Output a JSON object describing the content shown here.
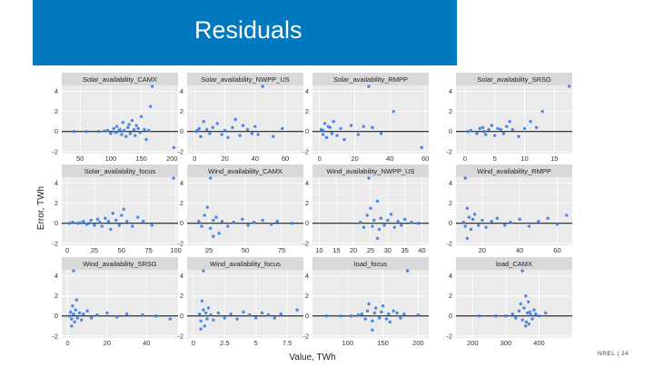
{
  "header": {
    "title": "Residuals"
  },
  "footer": {
    "org": "NREL",
    "separator": "|",
    "page": "24"
  },
  "colors": {
    "panel_bg": "#EBEBEB",
    "strip_bg": "#D9D9D9",
    "grid": "#FFFFFF",
    "point": "#3A7DE0",
    "zero_line": "#000000"
  },
  "chart_data": {
    "type": "scatter",
    "xlabel": "Value, TWh",
    "ylabel": "Error, TWh",
    "ylim": [
      -2.2,
      4.6
    ],
    "yticks": [
      -2,
      0,
      2,
      4
    ],
    "facets": [
      {
        "label": "Solar_availability_CAMX",
        "xlim": [
          20,
          210
        ],
        "xticks": [
          50,
          100,
          150,
          200
        ],
        "points": [
          [
            40,
            0
          ],
          [
            60,
            0
          ],
          [
            80,
            0
          ],
          [
            95,
            0.1
          ],
          [
            100,
            -0.2
          ],
          [
            105,
            0.3
          ],
          [
            108,
            -0.1
          ],
          [
            110,
            0.5
          ],
          [
            115,
            0.2
          ],
          [
            118,
            -0.3
          ],
          [
            120,
            0.9
          ],
          [
            122,
            0.1
          ],
          [
            125,
            -0.5
          ],
          [
            128,
            0.4
          ],
          [
            130,
            0.7
          ],
          [
            132,
            -0.2
          ],
          [
            135,
            1.1
          ],
          [
            138,
            0.2
          ],
          [
            140,
            -0.4
          ],
          [
            142,
            0.6
          ],
          [
            145,
            0.3
          ],
          [
            148,
            -0.1
          ],
          [
            150,
            1.5
          ],
          [
            155,
            0.2
          ],
          [
            158,
            -0.8
          ],
          [
            162,
            0.1
          ],
          [
            165,
            2.5
          ],
          [
            168,
            4.5
          ],
          [
            203,
            -1.6
          ],
          [
            112,
            0
          ],
          [
            90,
            0.05
          ]
        ]
      },
      {
        "label": "Solar_availability_NWPP_US",
        "xlim": [
          -5,
          72
        ],
        "xticks": [
          0,
          20,
          40,
          60
        ],
        "points": [
          [
            1,
            0
          ],
          [
            3,
            0.3
          ],
          [
            4,
            -0.5
          ],
          [
            6,
            1.0
          ],
          [
            8,
            0.2
          ],
          [
            10,
            -0.2
          ],
          [
            12,
            0.4
          ],
          [
            15,
            0.8
          ],
          [
            18,
            -0.3
          ],
          [
            20,
            0.1
          ],
          [
            22,
            -0.6
          ],
          [
            25,
            0.4
          ],
          [
            27,
            1.2
          ],
          [
            30,
            -0.4
          ],
          [
            32,
            0.6
          ],
          [
            35,
            0.2
          ],
          [
            38,
            -0.2
          ],
          [
            40,
            0.5
          ],
          [
            42,
            -0.3
          ],
          [
            52,
            -0.5
          ],
          [
            58,
            0.3
          ],
          [
            45,
            4.5
          ],
          [
            2,
            0.1
          ]
        ]
      },
      {
        "label": "Solar_availability_RMPP",
        "xlim": [
          -4,
          62
        ],
        "xticks": [
          0,
          20,
          40,
          60
        ],
        "points": [
          [
            1,
            0.2
          ],
          [
            2,
            -0.3
          ],
          [
            3,
            0.8
          ],
          [
            4,
            -0.6
          ],
          [
            5,
            0.5
          ],
          [
            6,
            0.4
          ],
          [
            7,
            -0.2
          ],
          [
            8,
            1.0
          ],
          [
            10,
            -0.4
          ],
          [
            12,
            0.3
          ],
          [
            14,
            -0.8
          ],
          [
            18,
            0.6
          ],
          [
            22,
            -0.3
          ],
          [
            25,
            0.5
          ],
          [
            30,
            0.4
          ],
          [
            35,
            -0.2
          ],
          [
            42,
            2.0
          ],
          [
            58,
            -1.6
          ],
          [
            28,
            4.5
          ],
          [
            2,
            0.1
          ]
        ]
      },
      {
        "label": "Solar_availability_SRSG",
        "xlim": [
          -1.5,
          18
        ],
        "xticks": [
          0,
          5,
          10,
          15
        ],
        "points": [
          [
            0.5,
            0
          ],
          [
            1,
            0.1
          ],
          [
            2,
            -0.2
          ],
          [
            2.5,
            0.3
          ],
          [
            3,
            0.4
          ],
          [
            3.5,
            -0.3
          ],
          [
            4,
            0.2
          ],
          [
            4.5,
            0.6
          ],
          [
            5,
            -0.4
          ],
          [
            5.5,
            0.3
          ],
          [
            6,
            0.2
          ],
          [
            6.5,
            -0.2
          ],
          [
            7,
            0.5
          ],
          [
            7.5,
            1.0
          ],
          [
            8,
            0.2
          ],
          [
            9,
            -0.5
          ],
          [
            10,
            0.3
          ],
          [
            11,
            1.0
          ],
          [
            12,
            0.4
          ],
          [
            13,
            2.0
          ],
          [
            17.5,
            4.5
          ],
          [
            3.2,
            0
          ]
        ]
      },
      {
        "label": "Solar_availability_focus",
        "xlim": [
          -5,
          102
        ],
        "xticks": [
          0,
          25,
          50,
          75,
          100
        ],
        "points": [
          [
            2,
            0
          ],
          [
            5,
            0.1
          ],
          [
            10,
            0
          ],
          [
            15,
            0.2
          ],
          [
            18,
            -0.1
          ],
          [
            22,
            0.3
          ],
          [
            25,
            -0.2
          ],
          [
            28,
            0.4
          ],
          [
            30,
            0.1
          ],
          [
            32,
            -0.3
          ],
          [
            35,
            0.5
          ],
          [
            38,
            0.2
          ],
          [
            40,
            -0.6
          ],
          [
            42,
            1.0
          ],
          [
            45,
            0.3
          ],
          [
            48,
            -0.2
          ],
          [
            50,
            0.8
          ],
          [
            52,
            1.4
          ],
          [
            55,
            0.2
          ],
          [
            60,
            -0.3
          ],
          [
            65,
            0.6
          ],
          [
            70,
            0.2
          ],
          [
            78,
            -0.2
          ],
          [
            98,
            4.5
          ],
          [
            12,
            0.05
          ],
          [
            20,
            0
          ]
        ]
      },
      {
        "label": "Wind_availability_CAMX",
        "xlim": [
          10,
          90
        ],
        "xticks": [
          25,
          50,
          75
        ],
        "points": [
          [
            18,
            0.2
          ],
          [
            20,
            -0.3
          ],
          [
            22,
            0.8
          ],
          [
            24,
            1.6
          ],
          [
            26,
            -0.5
          ],
          [
            28,
            0.3
          ],
          [
            30,
            0.6
          ],
          [
            32,
            -1.0
          ],
          [
            34,
            0.2
          ],
          [
            38,
            -0.3
          ],
          [
            42,
            0.1
          ],
          [
            48,
            0.4
          ],
          [
            52,
            -0.2
          ],
          [
            56,
            0.1
          ],
          [
            62,
            0.3
          ],
          [
            68,
            -0.1
          ],
          [
            72,
            0.2
          ],
          [
            82,
            0
          ],
          [
            26,
            4.5
          ],
          [
            28,
            -1.3
          ]
        ]
      },
      {
        "label": "Wind_availability_NWPP_US",
        "xlim": [
          8,
          42
        ],
        "xticks": [
          10,
          15,
          20,
          25,
          30,
          35,
          40
        ],
        "points": [
          [
            22,
            0.1
          ],
          [
            23,
            -0.4
          ],
          [
            24,
            0.8
          ],
          [
            25,
            1.5
          ],
          [
            25.5,
            -0.3
          ],
          [
            26,
            0.3
          ],
          [
            27,
            2.2
          ],
          [
            27.5,
            -0.6
          ],
          [
            28,
            0.5
          ],
          [
            29,
            -0.2
          ],
          [
            30,
            0.3
          ],
          [
            31,
            0.9
          ],
          [
            32,
            -0.4
          ],
          [
            33,
            0.2
          ],
          [
            34,
            -0.2
          ],
          [
            35,
            0.4
          ],
          [
            37,
            0.1
          ],
          [
            39,
            0
          ],
          [
            24.5,
            4.5
          ],
          [
            27,
            -1.5
          ]
        ]
      },
      {
        "label": "Wind_availability_RMPP",
        "xlim": [
          6,
          68
        ],
        "xticks": [
          20,
          40,
          60
        ],
        "points": [
          [
            10,
            0.1
          ],
          [
            11,
            -0.3
          ],
          [
            12,
            1.5
          ],
          [
            13,
            0.6
          ],
          [
            14,
            -0.6
          ],
          [
            15,
            0.4
          ],
          [
            16,
            0.9
          ],
          [
            18,
            -0.2
          ],
          [
            20,
            0.3
          ],
          [
            22,
            -0.4
          ],
          [
            25,
            0.2
          ],
          [
            28,
            0.5
          ],
          [
            32,
            -0.2
          ],
          [
            35,
            0.1
          ],
          [
            40,
            0.4
          ],
          [
            45,
            -0.3
          ],
          [
            50,
            0.2
          ],
          [
            55,
            0.5
          ],
          [
            60,
            -0.1
          ],
          [
            65,
            0.8
          ],
          [
            12,
            -1.5
          ],
          [
            11,
            4.5
          ]
        ]
      },
      {
        "label": "Wind_availability_SRSG",
        "xlim": [
          -3,
          56
        ],
        "xticks": [
          0,
          20,
          40
        ],
        "points": [
          [
            1,
            0
          ],
          [
            1.5,
            0.4
          ],
          [
            2,
            -0.3
          ],
          [
            2.5,
            1.0
          ],
          [
            3,
            0.2
          ],
          [
            3.5,
            -0.6
          ],
          [
            4,
            0.6
          ],
          [
            4.5,
            1.6
          ],
          [
            5,
            -0.2
          ],
          [
            6,
            0.3
          ],
          [
            7,
            -0.4
          ],
          [
            8,
            0.2
          ],
          [
            10,
            0.5
          ],
          [
            12,
            -0.2
          ],
          [
            15,
            0.1
          ],
          [
            20,
            0.3
          ],
          [
            25,
            -0.1
          ],
          [
            30,
            0.2
          ],
          [
            38,
            0.1
          ],
          [
            45,
            0
          ],
          [
            52,
            -0.3
          ],
          [
            3,
            4.5
          ],
          [
            2,
            -1.0
          ]
        ]
      },
      {
        "label": "Wind_availability_focus",
        "xlim": [
          -0.5,
          8.8
        ],
        "xticks": [
          0.0,
          2.5,
          5.0,
          7.5
        ],
        "points": [
          [
            0.5,
            0.2
          ],
          [
            0.6,
            -0.5
          ],
          [
            0.7,
            1.5
          ],
          [
            0.8,
            0.6
          ],
          [
            0.9,
            -1.0
          ],
          [
            1.0,
            0.3
          ],
          [
            1.1,
            -0.3
          ],
          [
            1.2,
            0.8
          ],
          [
            1.4,
            0.1
          ],
          [
            1.6,
            -0.4
          ],
          [
            2.0,
            0.3
          ],
          [
            2.5,
            -0.2
          ],
          [
            3.0,
            0.2
          ],
          [
            3.5,
            -0.3
          ],
          [
            4.0,
            0.4
          ],
          [
            4.5,
            0.1
          ],
          [
            5.0,
            -0.2
          ],
          [
            5.5,
            0.3
          ],
          [
            6.0,
            0.1
          ],
          [
            6.5,
            -0.2
          ],
          [
            7.0,
            0.2
          ],
          [
            8.3,
            0.6
          ],
          [
            0.6,
            -1.3
          ],
          [
            0.8,
            4.5
          ]
        ]
      },
      {
        "label": "load_focus",
        "xlim": [
          50,
          215
        ],
        "xticks": [
          100,
          150,
          200
        ],
        "points": [
          [
            70,
            0
          ],
          [
            90,
            0
          ],
          [
            105,
            0
          ],
          [
            115,
            0.1
          ],
          [
            120,
            0.2
          ],
          [
            125,
            -0.3
          ],
          [
            128,
            0.5
          ],
          [
            130,
            1.2
          ],
          [
            135,
            -0.5
          ],
          [
            138,
            0.3
          ],
          [
            140,
            0.8
          ],
          [
            145,
            -0.2
          ],
          [
            148,
            0.4
          ],
          [
            150,
            1.0
          ],
          [
            155,
            -0.3
          ],
          [
            158,
            0.2
          ],
          [
            160,
            -0.6
          ],
          [
            165,
            0.5
          ],
          [
            170,
            0.3
          ],
          [
            175,
            -0.2
          ],
          [
            180,
            0.2
          ],
          [
            200,
            0.1
          ],
          [
            185,
            4.5
          ],
          [
            135,
            -1.4
          ]
        ]
      },
      {
        "label": "load_CAMX",
        "xlim": [
          150,
          500
        ],
        "xticks": [
          200,
          300,
          400
        ],
        "points": [
          [
            220,
            0
          ],
          [
            270,
            0
          ],
          [
            300,
            0
          ],
          [
            320,
            0.2
          ],
          [
            330,
            -0.2
          ],
          [
            340,
            0.5
          ],
          [
            345,
            1.2
          ],
          [
            350,
            -0.4
          ],
          [
            355,
            0.8
          ],
          [
            360,
            2.0
          ],
          [
            362,
            -0.6
          ],
          [
            365,
            0.3
          ],
          [
            368,
            1.4
          ],
          [
            370,
            -0.8
          ],
          [
            372,
            0.4
          ],
          [
            375,
            0.1
          ],
          [
            380,
            -0.3
          ],
          [
            385,
            0.6
          ],
          [
            390,
            0.2
          ],
          [
            400,
            0
          ],
          [
            420,
            0.3
          ],
          [
            360,
            -1.0
          ],
          [
            350,
            4.5
          ]
        ]
      }
    ]
  }
}
